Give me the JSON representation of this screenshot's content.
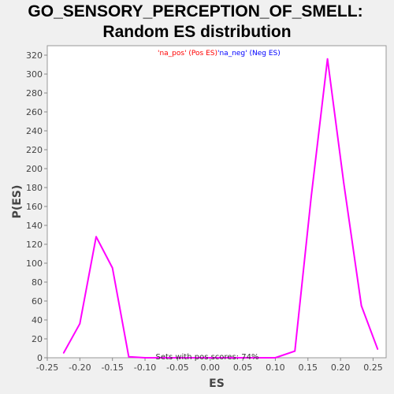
{
  "chart_data": {
    "type": "line",
    "title_lines": [
      "GO_SENSORY_PERCEPTION_OF_SMELL:",
      "Random ES distribution"
    ],
    "xlabel": "ES",
    "ylabel": "P(ES)",
    "xlim": [
      -0.25,
      0.27
    ],
    "ylim": [
      0,
      330
    ],
    "x_ticks": [
      "-0.25",
      "-0.20",
      "-0.15",
      "-0.10",
      "-0.05",
      "0.00",
      "0.05",
      "0.10",
      "0.15",
      "0.20",
      "0.25"
    ],
    "x_tick_values": [
      -0.25,
      -0.2,
      -0.15,
      -0.1,
      -0.05,
      0.0,
      0.05,
      0.1,
      0.15,
      0.2,
      0.25
    ],
    "y_ticks": [
      "0",
      "20",
      "40",
      "60",
      "80",
      "100",
      "120",
      "140",
      "160",
      "180",
      "200",
      "220",
      "240",
      "260",
      "280",
      "300",
      "320"
    ],
    "y_tick_values": [
      0,
      20,
      40,
      60,
      80,
      100,
      120,
      140,
      160,
      180,
      200,
      220,
      240,
      260,
      280,
      300,
      320
    ],
    "grid": false,
    "legend": {
      "placement": "top-center",
      "entries": [
        {
          "text": "'na_pos' (Pos ES)",
          "color": "#ff0000"
        },
        {
          "text": "'na_neg' (Neg ES)",
          "color": "#0000ff"
        }
      ]
    },
    "annotation": "Sets with pos scores: 74%",
    "series": [
      {
        "color": "#ff00ff",
        "x": [
          -0.225,
          -0.2,
          -0.175,
          -0.15,
          -0.125,
          -0.1,
          -0.075,
          -0.05,
          -0.025,
          0.0,
          0.025,
          0.05,
          0.075,
          0.1,
          0.13,
          0.155,
          0.18,
          0.205,
          0.232,
          0.257
        ],
        "y": [
          5,
          36,
          128,
          95,
          1,
          0,
          0,
          0,
          0,
          0,
          0,
          0,
          0,
          0,
          7,
          170,
          316,
          185,
          55,
          9
        ]
      }
    ]
  }
}
